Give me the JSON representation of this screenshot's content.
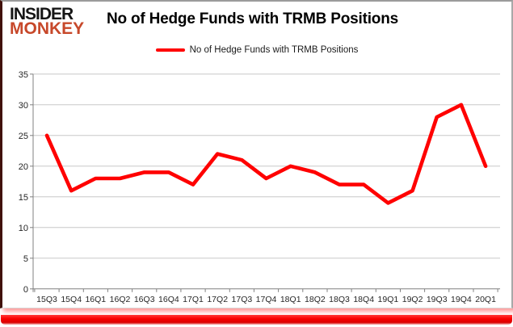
{
  "logo": {
    "line1": "INSIDER",
    "line2": "MONKEY"
  },
  "header": {
    "title": "No of Hedge Funds with TRMB Positions"
  },
  "legend": {
    "label": "No of Hedge Funds with TRMB Positions",
    "line_color": "#ff0000"
  },
  "colors": {
    "series": "#ff0000",
    "gridline": "#c8c8c8",
    "axis": "#808080",
    "logo_accent": "#c7482a",
    "glow": "#ff0000"
  },
  "chart_data": {
    "type": "line",
    "title": "No of Hedge Funds with TRMB Positions",
    "categories": [
      "15Q3",
      "15Q4",
      "16Q1",
      "16Q2",
      "16Q3",
      "16Q4",
      "17Q1",
      "17Q2",
      "17Q3",
      "17Q4",
      "18Q1",
      "18Q2",
      "18Q3",
      "18Q4",
      "19Q1",
      "19Q2",
      "19Q3",
      "19Q4",
      "20Q1"
    ],
    "series": [
      {
        "name": "No of Hedge Funds with TRMB Positions",
        "color": "#ff0000",
        "values": [
          25,
          16,
          18,
          18,
          19,
          19,
          17,
          22,
          21,
          18,
          20,
          19,
          17,
          17,
          14,
          16,
          28,
          30,
          20
        ]
      }
    ],
    "xlabel": "",
    "ylabel": "",
    "ylim": [
      0,
      35
    ],
    "yticks": [
      0,
      5,
      10,
      15,
      20,
      25,
      30,
      35
    ],
    "grid": "horizontal",
    "legend_position": "top-center"
  }
}
